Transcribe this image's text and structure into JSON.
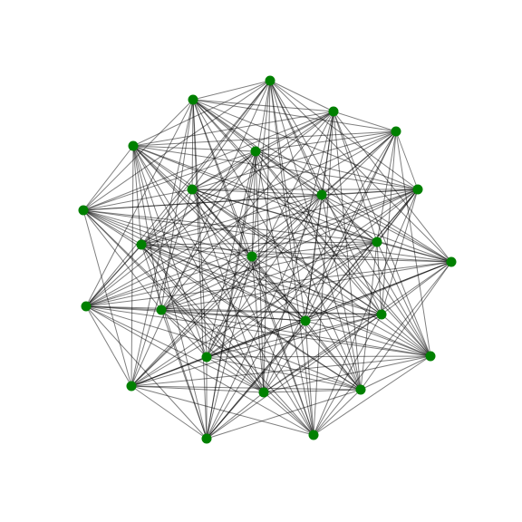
{
  "graph": {
    "node_color": "#008000",
    "edge_color": "#000000",
    "node_count": 24,
    "edges": [
      [
        0,
        1
      ],
      [
        0,
        2
      ],
      [
        0,
        4
      ],
      [
        0,
        6
      ],
      [
        0,
        7
      ],
      [
        0,
        8
      ],
      [
        0,
        9
      ],
      [
        0,
        10
      ],
      [
        0,
        12
      ],
      [
        0,
        13
      ],
      [
        0,
        14
      ],
      [
        0,
        16
      ],
      [
        0,
        17
      ],
      [
        0,
        18
      ],
      [
        0,
        20
      ],
      [
        0,
        21
      ],
      [
        0,
        22
      ],
      [
        0,
        23
      ],
      [
        1,
        2
      ],
      [
        1,
        3
      ],
      [
        1,
        5
      ],
      [
        1,
        6
      ],
      [
        1,
        7
      ],
      [
        1,
        8
      ],
      [
        1,
        9
      ],
      [
        1,
        11
      ],
      [
        1,
        12
      ],
      [
        1,
        13
      ],
      [
        1,
        14
      ],
      [
        1,
        15
      ],
      [
        1,
        17
      ],
      [
        1,
        18
      ],
      [
        1,
        19
      ],
      [
        1,
        20
      ],
      [
        1,
        22
      ],
      [
        1,
        23
      ],
      [
        2,
        3
      ],
      [
        2,
        4
      ],
      [
        2,
        5
      ],
      [
        2,
        6
      ],
      [
        2,
        7
      ],
      [
        2,
        9
      ],
      [
        2,
        10
      ],
      [
        2,
        11
      ],
      [
        2,
        13
      ],
      [
        2,
        14
      ],
      [
        2,
        15
      ],
      [
        2,
        16
      ],
      [
        2,
        18
      ],
      [
        2,
        19
      ],
      [
        2,
        21
      ],
      [
        2,
        22
      ],
      [
        3,
        4
      ],
      [
        3,
        5
      ],
      [
        3,
        6
      ],
      [
        3,
        7
      ],
      [
        3,
        8
      ],
      [
        3,
        10
      ],
      [
        3,
        11
      ],
      [
        3,
        12
      ],
      [
        3,
        14
      ],
      [
        3,
        16
      ],
      [
        3,
        17
      ],
      [
        3,
        18
      ],
      [
        3,
        20
      ],
      [
        3,
        21
      ],
      [
        3,
        23
      ],
      [
        4,
        5
      ],
      [
        4,
        6
      ],
      [
        4,
        8
      ],
      [
        4,
        9
      ],
      [
        4,
        10
      ],
      [
        4,
        11
      ],
      [
        4,
        12
      ],
      [
        4,
        13
      ],
      [
        4,
        15
      ],
      [
        4,
        16
      ],
      [
        4,
        17
      ],
      [
        4,
        19
      ],
      [
        4,
        20
      ],
      [
        4,
        21
      ],
      [
        4,
        22
      ],
      [
        4,
        23
      ],
      [
        5,
        6
      ],
      [
        5,
        7
      ],
      [
        5,
        8
      ],
      [
        5,
        9
      ],
      [
        5,
        10
      ],
      [
        5,
        12
      ],
      [
        5,
        13
      ],
      [
        5,
        14
      ],
      [
        5,
        15
      ],
      [
        5,
        17
      ],
      [
        5,
        18
      ],
      [
        5,
        19
      ],
      [
        5,
        21
      ],
      [
        5,
        22
      ],
      [
        5,
        23
      ],
      [
        6,
        7
      ],
      [
        6,
        8
      ],
      [
        6,
        9
      ],
      [
        6,
        11
      ],
      [
        6,
        12
      ],
      [
        6,
        13
      ],
      [
        6,
        14
      ],
      [
        6,
        16
      ],
      [
        6,
        17
      ],
      [
        6,
        18
      ],
      [
        6,
        20
      ],
      [
        6,
        21
      ],
      [
        6,
        22
      ],
      [
        7,
        8
      ],
      [
        7,
        9
      ],
      [
        7,
        10
      ],
      [
        7,
        11
      ],
      [
        7,
        13
      ],
      [
        7,
        14
      ],
      [
        7,
        15
      ],
      [
        7,
        16
      ],
      [
        7,
        18
      ],
      [
        7,
        19
      ],
      [
        7,
        20
      ],
      [
        7,
        22
      ],
      [
        7,
        23
      ],
      [
        8,
        9
      ],
      [
        8,
        10
      ],
      [
        8,
        11
      ],
      [
        8,
        12
      ],
      [
        8,
        14
      ],
      [
        8,
        15
      ],
      [
        8,
        16
      ],
      [
        8,
        17
      ],
      [
        8,
        19
      ],
      [
        8,
        20
      ],
      [
        8,
        21
      ],
      [
        8,
        23
      ],
      [
        9,
        10
      ],
      [
        9,
        11
      ],
      [
        9,
        12
      ],
      [
        9,
        13
      ],
      [
        9,
        15
      ],
      [
        9,
        16
      ],
      [
        9,
        17
      ],
      [
        9,
        18
      ],
      [
        9,
        20
      ],
      [
        9,
        21
      ],
      [
        9,
        22
      ],
      [
        10,
        11
      ],
      [
        10,
        12
      ],
      [
        10,
        13
      ],
      [
        10,
        14
      ],
      [
        10,
        16
      ],
      [
        10,
        17
      ],
      [
        10,
        18
      ],
      [
        10,
        19
      ],
      [
        10,
        21
      ],
      [
        10,
        22
      ],
      [
        10,
        23
      ],
      [
        11,
        12
      ],
      [
        11,
        13
      ],
      [
        11,
        14
      ],
      [
        11,
        15
      ],
      [
        11,
        17
      ],
      [
        11,
        18
      ],
      [
        11,
        19
      ],
      [
        11,
        20
      ],
      [
        11,
        22
      ],
      [
        11,
        23
      ],
      [
        12,
        13
      ],
      [
        12,
        14
      ],
      [
        12,
        15
      ],
      [
        12,
        16
      ],
      [
        12,
        18
      ],
      [
        12,
        19
      ],
      [
        12,
        20
      ],
      [
        12,
        21
      ],
      [
        12,
        23
      ],
      [
        13,
        14
      ],
      [
        13,
        15
      ],
      [
        13,
        16
      ],
      [
        13,
        17
      ],
      [
        13,
        19
      ],
      [
        13,
        20
      ],
      [
        13,
        21
      ],
      [
        13,
        22
      ],
      [
        14,
        15
      ],
      [
        14,
        16
      ],
      [
        14,
        17
      ],
      [
        14,
        18
      ],
      [
        14,
        20
      ],
      [
        14,
        21
      ],
      [
        14,
        22
      ],
      [
        14,
        23
      ],
      [
        15,
        16
      ],
      [
        15,
        17
      ],
      [
        15,
        18
      ],
      [
        15,
        19
      ],
      [
        15,
        21
      ],
      [
        15,
        22
      ],
      [
        15,
        23
      ],
      [
        16,
        17
      ],
      [
        16,
        18
      ],
      [
        16,
        19
      ],
      [
        16,
        20
      ],
      [
        16,
        22
      ],
      [
        16,
        23
      ],
      [
        17,
        18
      ],
      [
        17,
        19
      ],
      [
        17,
        20
      ],
      [
        17,
        21
      ],
      [
        17,
        23
      ],
      [
        18,
        19
      ],
      [
        18,
        20
      ],
      [
        18,
        21
      ],
      [
        18,
        22
      ],
      [
        19,
        20
      ],
      [
        19,
        21
      ],
      [
        19,
        22
      ],
      [
        19,
        23
      ],
      [
        20,
        21
      ],
      [
        20,
        22
      ],
      [
        20,
        23
      ],
      [
        21,
        22
      ],
      [
        21,
        23
      ],
      [
        22,
        23
      ]
    ]
  }
}
